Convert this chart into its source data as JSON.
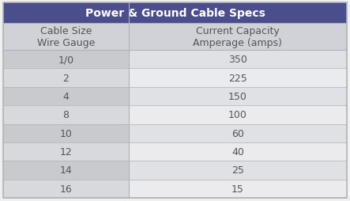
{
  "title": "Power & Ground Cable Specs",
  "col1_header": "Cable Size\nWire Gauge",
  "col2_header": "Current Capacity\nAmperage (amps)",
  "rows": [
    [
      "1/0",
      "350"
    ],
    [
      "2",
      "225"
    ],
    [
      "4",
      "150"
    ],
    [
      "8",
      "100"
    ],
    [
      "10",
      "60"
    ],
    [
      "12",
      "40"
    ],
    [
      "14",
      "25"
    ],
    [
      "16",
      "15"
    ]
  ],
  "title_bg_color": "#4a4e8a",
  "title_text_color": "#ffffff",
  "header_bg_color": "#d0d2d8",
  "col1_row_bg_even": "#c8cace",
  "col1_row_bg_odd": "#d8d9dd",
  "col2_row_bg_even": "#e0e1e5",
  "col2_row_bg_odd": "#ebebee",
  "border_color": "#b0b2b8",
  "text_color": "#555555",
  "title_fontsize": 10,
  "header_fontsize": 9,
  "cell_fontsize": 9,
  "fig_width": 4.43,
  "fig_height": 2.55,
  "col_split": 0.365
}
